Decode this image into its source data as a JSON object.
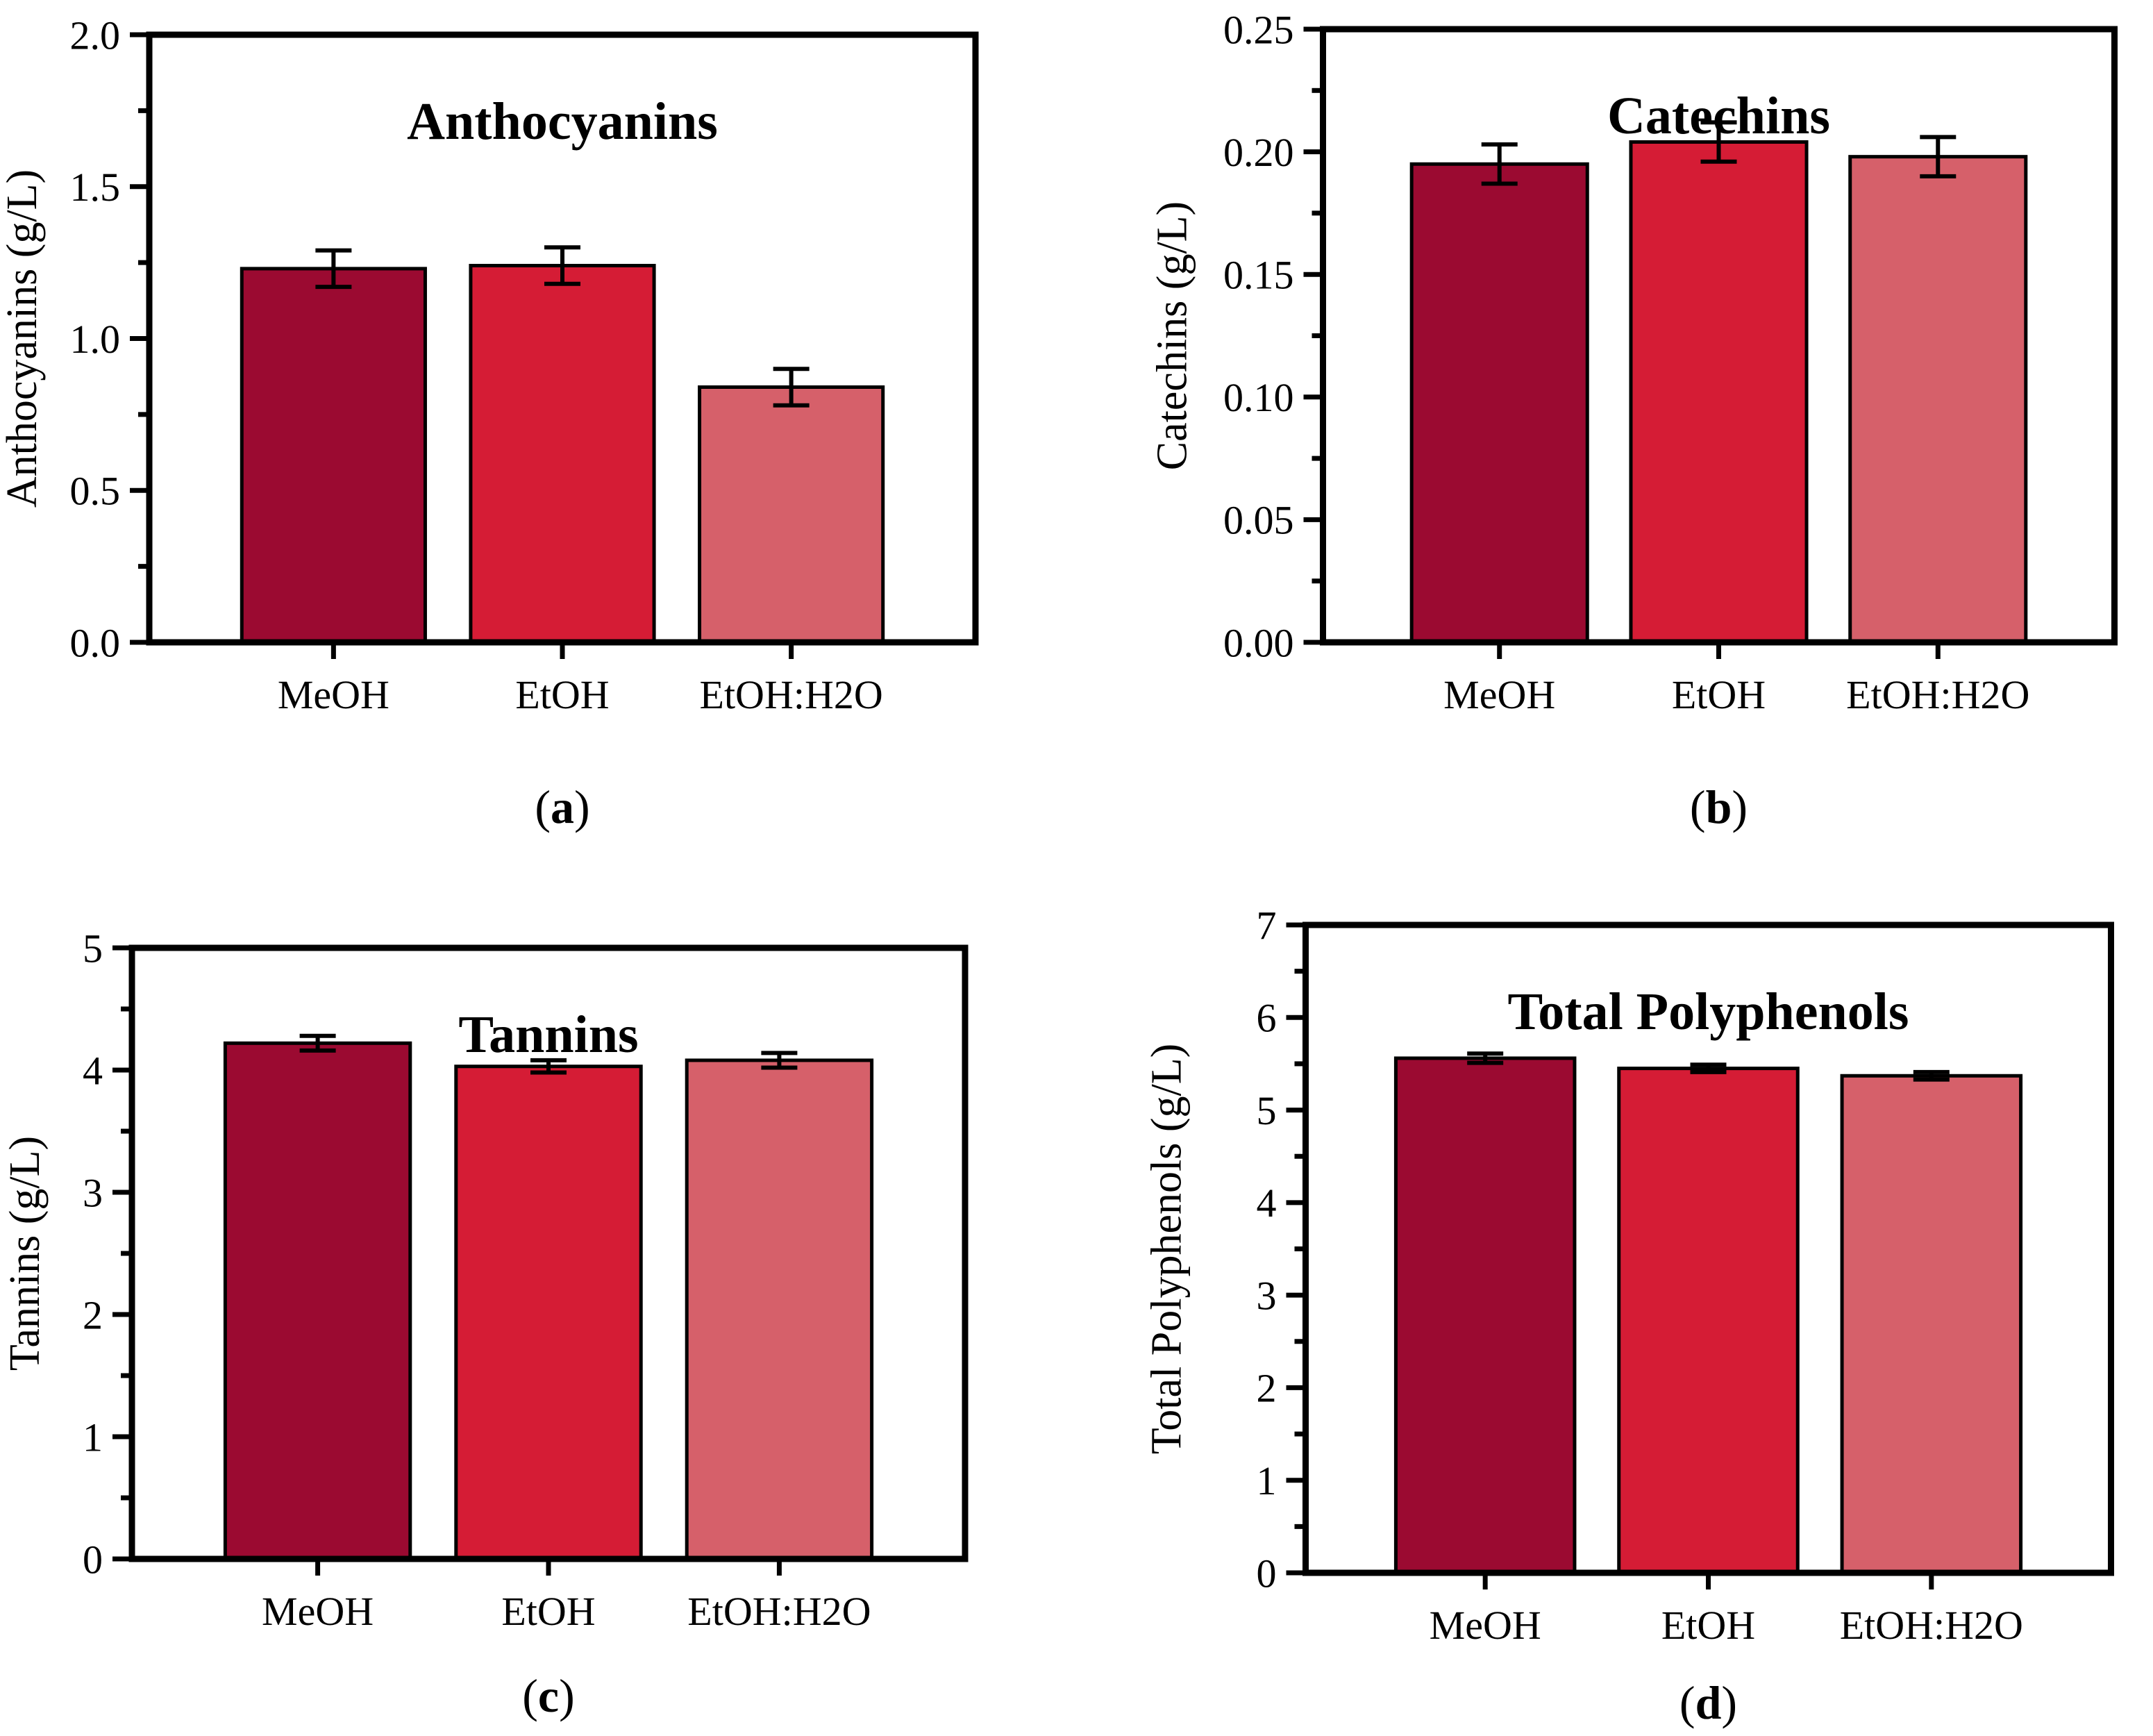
{
  "style": {
    "background": "#FFFFFF",
    "axis_color": "#000000",
    "text_color": "#000000",
    "bar_edge_color": "#000000",
    "error_bar_color": "#000000",
    "bar_colors": [
      "#9B0A31",
      "#D51C35",
      "#D6606A"
    ]
  },
  "chart_data": [
    {
      "id": "a",
      "type": "bar",
      "title": "Anthocyanins",
      "ylabel": "Anthocyanins (g/L)",
      "xlabel": "",
      "panel_label": "(a)",
      "categories": [
        "MeOH",
        "EtOH",
        "EtOH:H2O"
      ],
      "values": [
        1.23,
        1.24,
        0.84
      ],
      "errors": [
        0.06,
        0.06,
        0.06
      ],
      "ylim": [
        0,
        2.0
      ],
      "ytick_labels": [
        "0.0",
        "0.5",
        "1.0",
        "1.5",
        "2.0"
      ],
      "yminor_per_major": 2,
      "grid": false,
      "legend": "none"
    },
    {
      "id": "b",
      "type": "bar",
      "title": "Catechins",
      "ylabel": "Catechins (g/L)",
      "xlabel": "",
      "panel_label": "(b)",
      "categories": [
        "MeOH",
        "EtOH",
        "EtOH:H2O"
      ],
      "values": [
        0.195,
        0.204,
        0.198
      ],
      "errors": [
        0.008,
        0.008,
        0.008
      ],
      "ylim": [
        0,
        0.25
      ],
      "ytick_labels": [
        "0.00",
        "0.05",
        "0.10",
        "0.15",
        "0.20",
        "0.25"
      ],
      "yminor_per_major": 2,
      "grid": false,
      "legend": "none"
    },
    {
      "id": "c",
      "type": "bar",
      "title": "Tannins",
      "ylabel": "Tannins (g/L)",
      "xlabel": "",
      "panel_label": "(c)",
      "categories": [
        "MeOH",
        "EtOH",
        "EtOH:H2O"
      ],
      "values": [
        4.22,
        4.03,
        4.08
      ],
      "errors": [
        0.06,
        0.05,
        0.06
      ],
      "ylim": [
        0,
        5
      ],
      "ytick_labels": [
        "0",
        "1",
        "2",
        "3",
        "4",
        "5"
      ],
      "yminor_per_major": 2,
      "grid": false,
      "legend": "none"
    },
    {
      "id": "d",
      "type": "bar",
      "title": "Total Polyphenols",
      "ylabel": "Total Polyphenols (g/L)",
      "xlabel": "",
      "panel_label": "(d)",
      "categories": [
        "MeOH",
        "EtOH",
        "EtOH:H2O"
      ],
      "values": [
        5.56,
        5.45,
        5.37
      ],
      "errors": [
        0.05,
        0.04,
        0.04
      ],
      "ylim": [
        0,
        7
      ],
      "ytick_labels": [
        "0",
        "1",
        "2",
        "3",
        "4",
        "5",
        "6",
        "7"
      ],
      "yminor_per_major": 2,
      "grid": false,
      "legend": "none"
    }
  ]
}
